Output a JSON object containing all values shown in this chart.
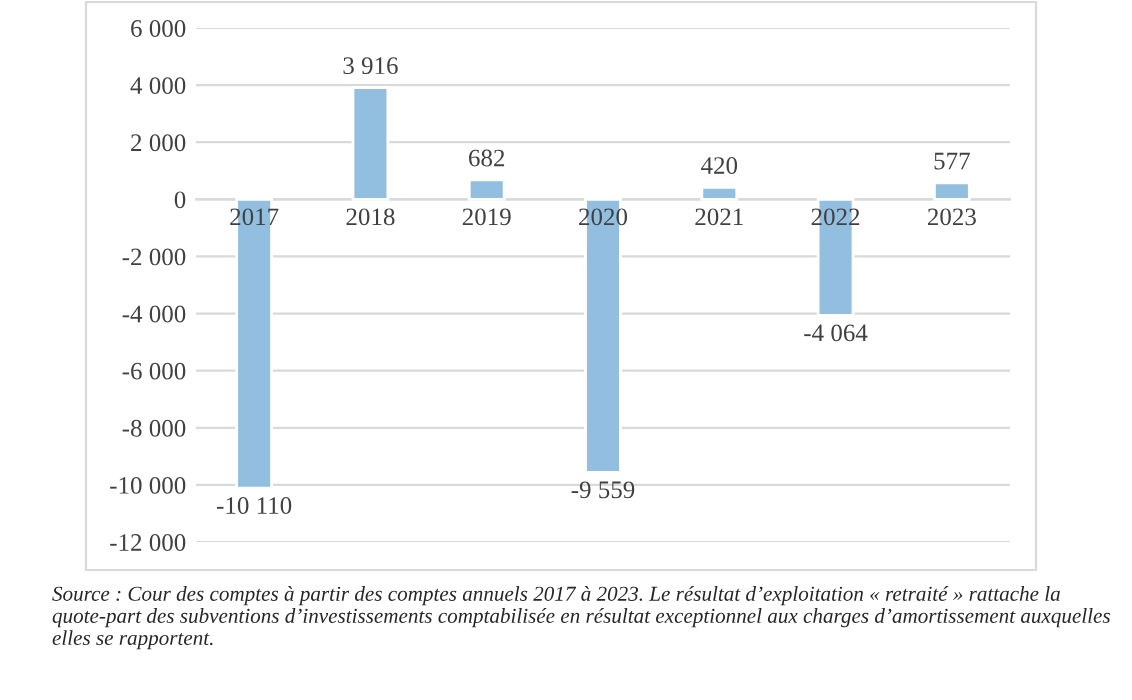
{
  "chart_data": {
    "type": "bar",
    "categories": [
      "2017",
      "2018",
      "2019",
      "2020",
      "2021",
      "2022",
      "2023"
    ],
    "values": [
      -10110,
      3916,
      682,
      -9559,
      420,
      -4064,
      577
    ],
    "value_labels": [
      "-10 110",
      "3 916",
      "682",
      "-9 559",
      "420",
      "-4 064",
      "577"
    ],
    "color": "#92bee0",
    "ylim": [
      -12000,
      6000
    ],
    "yticks": [
      {
        "value": -12000,
        "label": "-12 000"
      },
      {
        "value": -10000,
        "label": "-10 000"
      },
      {
        "value": -8000,
        "label": "-8 000"
      },
      {
        "value": -6000,
        "label": "-6 000"
      },
      {
        "value": -4000,
        "label": "-4 000"
      },
      {
        "value": -2000,
        "label": "-2 000"
      },
      0,
      {
        "value": 2000,
        "label": "2 000"
      },
      {
        "value": 4000,
        "label": "4 000"
      },
      {
        "value": 6000,
        "label": "6 000"
      }
    ],
    "grid": "y",
    "legend": false,
    "annotations": [
      "Source : Cour des comptes à partir des comptes annuels 2017 à 2023. Le résultat d’exploitation « retraité » rattache la quote-part des subventions d’investissements comptabilisée en résultat exceptionnel aux charges d’amortissement auxquelles elles se rapportent."
    ]
  }
}
